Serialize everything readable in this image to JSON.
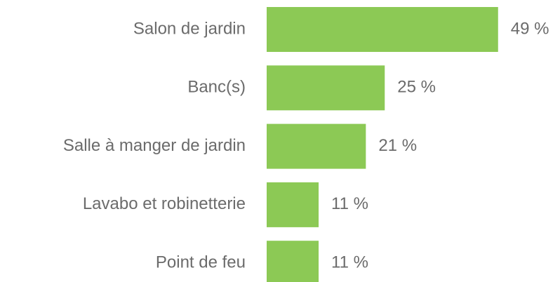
{
  "chart_data": {
    "type": "hbar",
    "categories": [
      "Salon de jardin",
      "Banc(s)",
      "Salle à manger de jardin",
      "Lavabo et robinetterie",
      "Point de feu"
    ],
    "values": [
      49,
      25,
      21,
      11,
      11
    ],
    "value_labels": [
      "49 %",
      "25 %",
      "21 %",
      "11 %",
      "11 %"
    ],
    "color": "#8cc955"
  }
}
